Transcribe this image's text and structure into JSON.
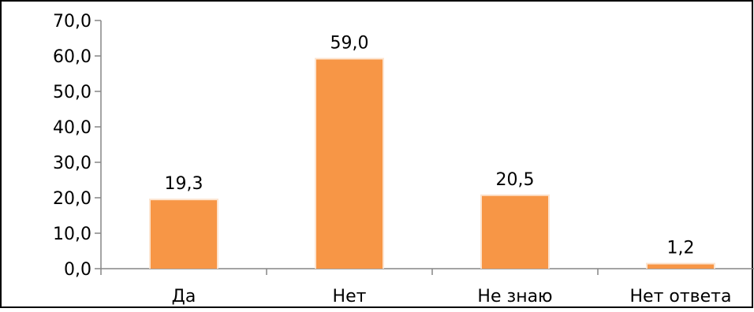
{
  "chart_data": {
    "type": "bar",
    "title": "",
    "xlabel": "",
    "ylabel": "",
    "categories": [
      "Да",
      "Нет",
      "Не знаю",
      "Нет ответа"
    ],
    "values": [
      19.3,
      59.0,
      20.5,
      1.2
    ],
    "data_labels": [
      "19,3",
      "59,0",
      "20,5",
      "1,2"
    ],
    "ylim": [
      0,
      70
    ],
    "yticks": [
      0,
      10,
      20,
      30,
      40,
      50,
      60,
      70
    ],
    "ytick_labels": [
      "0,0",
      "10,0",
      "20,0",
      "30,0",
      "40,0",
      "50,0",
      "60,0",
      "70,0"
    ],
    "grid": false,
    "legend": "none",
    "bar_color": "#f79646",
    "bar_edge_color": "#fde4cf",
    "axis_color": "#868686",
    "border_color": "#000000"
  }
}
